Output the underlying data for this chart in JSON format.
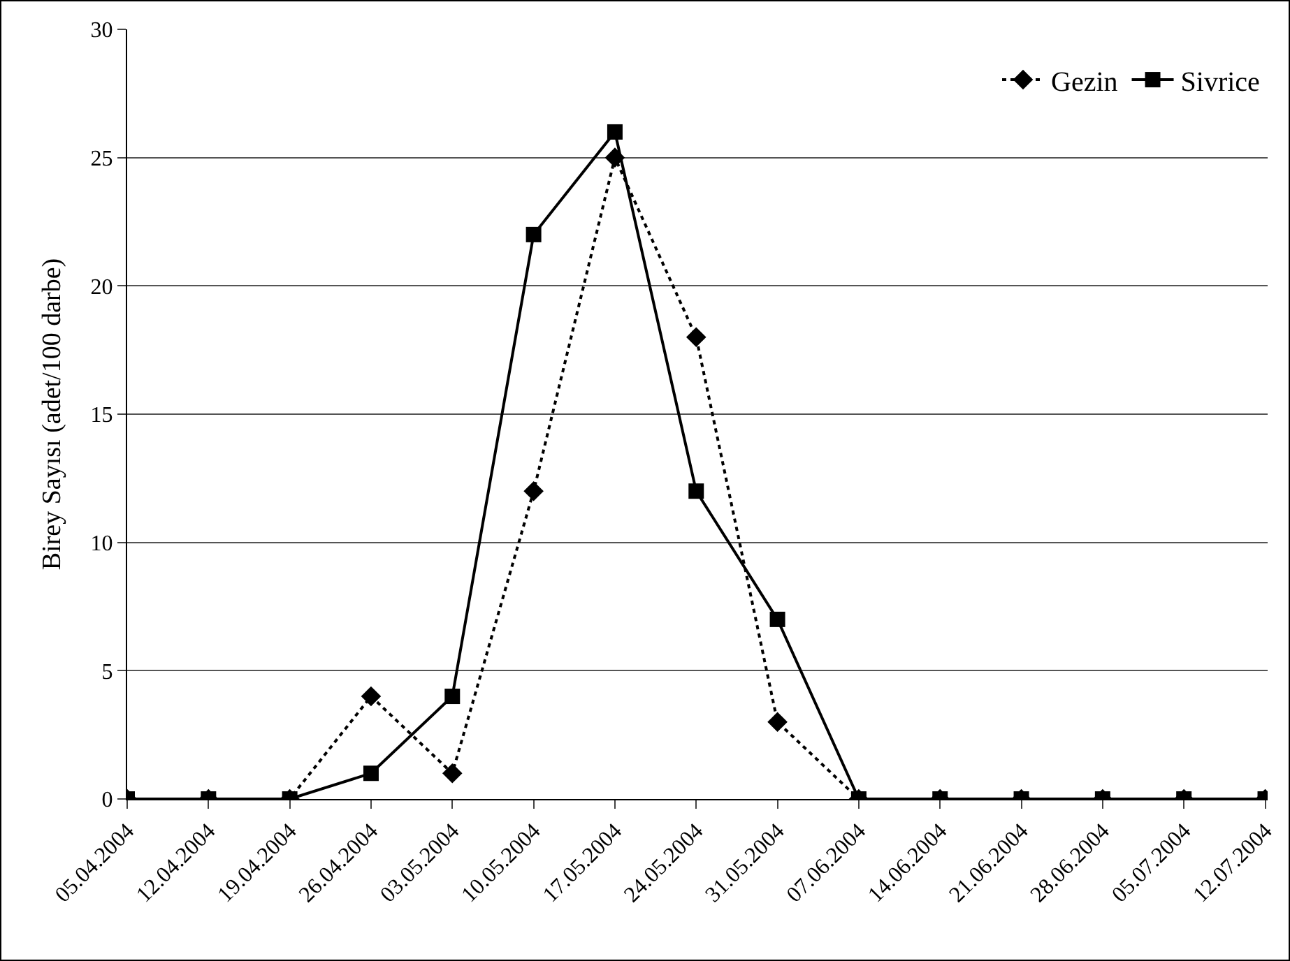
{
  "chart_data": {
    "type": "line",
    "ylabel": "Birey Sayısı (adet/100 darbe)",
    "categories": [
      "05.04.2004",
      "12.04.2004",
      "19.04.2004",
      "26.04.2004",
      "03.05.2004",
      "10.05.2004",
      "17.05.2004",
      "24.05.2004",
      "31.05.2004",
      "07.06.2004",
      "14.06.2004",
      "21.06.2004",
      "28.06.2004",
      "05.07.2004",
      "12.07.2004"
    ],
    "series": [
      {
        "name": "Gezin",
        "color": "#000000",
        "marker": "diamond",
        "line_style": "dotted",
        "values": [
          0,
          0,
          0,
          4,
          1,
          12,
          25,
          18,
          3,
          0,
          0,
          0,
          0,
          0,
          0
        ]
      },
      {
        "name": "Sivrice",
        "color": "#000000",
        "marker": "square",
        "line_style": "solid",
        "values": [
          0,
          0,
          0,
          1,
          4,
          22,
          26,
          12,
          7,
          0,
          0,
          0,
          0,
          0,
          0
        ]
      }
    ],
    "ylim": [
      0,
      30
    ],
    "yticks": [
      0,
      5,
      10,
      15,
      20,
      25,
      30
    ],
    "grid": "y",
    "legend": "top right"
  }
}
